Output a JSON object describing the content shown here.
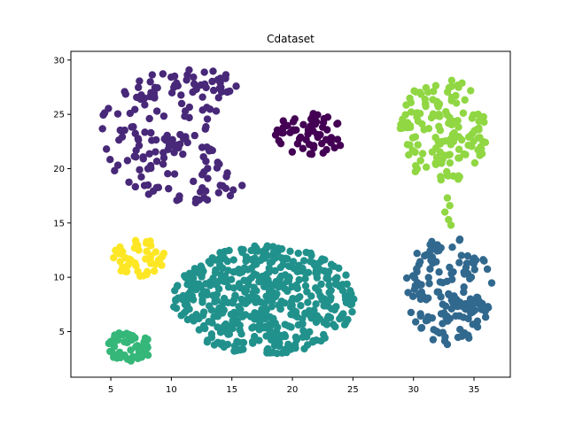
{
  "chart_data": {
    "type": "scatter",
    "title": "Cdataset",
    "xlabel": "",
    "ylabel": "",
    "xlim": [
      1.7,
      38.0
    ],
    "ylim": [
      0.8,
      30.8
    ],
    "xticks": [
      5,
      10,
      15,
      20,
      25,
      30,
      35
    ],
    "yticks": [
      5,
      10,
      15,
      20,
      25,
      30
    ],
    "grid": false,
    "clusters": [
      {
        "id": "crescent",
        "shape": "crescent",
        "color": "#482878",
        "cx": 11.5,
        "cy": 23,
        "rx": 7.5,
        "ry": 6.2,
        "inner_cx": 17.5,
        "inner_ry": 4.6,
        "count": 180,
        "x_range": [
          3.2,
          16.2
        ],
        "y_range": [
          16.5,
          29.2
        ]
      },
      {
        "id": "top-center-blob",
        "shape": "ellipse",
        "color": "#440154",
        "cx": 21.5,
        "cy": 23.2,
        "rx": 2.9,
        "ry": 2.0,
        "count": 60,
        "x_range": [
          18.6,
          24.4
        ],
        "y_range": [
          21.2,
          25.4
        ]
      },
      {
        "id": "right-top-blob",
        "shape": "ellipse",
        "color": "#90d743",
        "cx": 32.5,
        "cy": 23.5,
        "rx": 3.6,
        "ry": 5.0,
        "count": 150,
        "x_range": [
          28.8,
          36.4
        ],
        "y_range": [
          15.5,
          28.5
        ]
      },
      {
        "id": "right-bottom-blob",
        "shape": "ellipse",
        "color": "#31688e",
        "cx": 32.9,
        "cy": 8.8,
        "rx": 3.6,
        "ry": 5.0,
        "count": 150,
        "x_range": [
          29.3,
          36.5
        ],
        "y_range": [
          3.8,
          14.2
        ]
      },
      {
        "id": "yellow-blob",
        "shape": "ellipse",
        "color": "#fde725",
        "cx": 7.3,
        "cy": 11.8,
        "rx": 2.2,
        "ry": 1.7,
        "count": 50,
        "x_range": [
          5.1,
          9.5
        ],
        "y_range": [
          10.1,
          13.7
        ]
      },
      {
        "id": "large-bottom-blob",
        "shape": "ellipse",
        "color": "#21918c",
        "cx": 17.7,
        "cy": 7.9,
        "rx": 7.6,
        "ry": 5.0,
        "count": 500,
        "x_range": [
          10.1,
          25.3
        ],
        "y_range": [
          2.9,
          12.9
        ]
      },
      {
        "id": "small-bottom-blob",
        "shape": "ellipse",
        "color": "#35b779",
        "cx": 6.5,
        "cy": 3.6,
        "rx": 1.9,
        "ry": 1.4,
        "count": 50,
        "x_range": [
          4.6,
          8.4
        ],
        "y_range": [
          2.2,
          5.0
        ]
      }
    ]
  }
}
